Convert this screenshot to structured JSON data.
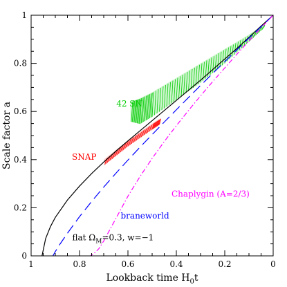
{
  "chart_data": {
    "type": "line",
    "xlabel": "Lookback time H",
    "xlabel_sub": "0",
    "xlabel_suffix": "t",
    "ylabel": "Scale factor a",
    "xlim": [
      1,
      0
    ],
    "ylim": [
      0,
      1
    ],
    "x_ticks": [
      1,
      0.8,
      0.6,
      0.4,
      0.2,
      0
    ],
    "x_tick_labels": [
      "1",
      "0.8",
      "0.6",
      "0.4",
      "0.2",
      "0"
    ],
    "y_ticks": [
      0,
      0.2,
      0.4,
      0.6,
      0.8,
      1
    ],
    "y_tick_labels": [
      "0",
      "0.2",
      "0.4",
      "0.6",
      "0.8",
      "1"
    ],
    "colors": {
      "flat": "#000000",
      "braneworld": "#0000ff",
      "chaplygin": "#ff00ff",
      "sn42": "#00cc00",
      "snap": "#ff0000"
    },
    "series": [
      {
        "key": "flat",
        "style": "solid",
        "x": [
          0,
          0.05,
          0.1,
          0.15,
          0.2,
          0.25,
          0.3,
          0.35,
          0.4,
          0.45,
          0.5,
          0.55,
          0.6,
          0.65,
          0.7,
          0.75,
          0.8,
          0.85,
          0.9,
          0.92,
          0.94,
          0.955
        ],
        "y": [
          1,
          0.955,
          0.908,
          0.862,
          0.818,
          0.774,
          0.73,
          0.688,
          0.646,
          0.604,
          0.562,
          0.52,
          0.478,
          0.435,
          0.39,
          0.342,
          0.29,
          0.232,
          0.16,
          0.122,
          0.072,
          0
        ]
      },
      {
        "key": "braneworld",
        "style": "dashed",
        "x": [
          0,
          0.05,
          0.1,
          0.15,
          0.2,
          0.25,
          0.3,
          0.35,
          0.4,
          0.45,
          0.5,
          0.55,
          0.6,
          0.65,
          0.7,
          0.75,
          0.8,
          0.85,
          0.88,
          0.9,
          0.91
        ],
        "y": [
          1,
          0.952,
          0.905,
          0.856,
          0.807,
          0.758,
          0.708,
          0.658,
          0.607,
          0.556,
          0.504,
          0.452,
          0.398,
          0.343,
          0.286,
          0.226,
          0.163,
          0.094,
          0.05,
          0.018,
          0
        ]
      },
      {
        "key": "chaplygin",
        "style": "dashdot",
        "x": [
          0,
          0.05,
          0.1,
          0.15,
          0.2,
          0.25,
          0.3,
          0.35,
          0.4,
          0.45,
          0.5,
          0.55,
          0.6,
          0.65,
          0.7,
          0.72,
          0.74,
          0.755
        ],
        "y": [
          1,
          0.947,
          0.893,
          0.838,
          0.781,
          0.724,
          0.665,
          0.604,
          0.541,
          0.475,
          0.405,
          0.33,
          0.248,
          0.155,
          0.062,
          0.03,
          0.01,
          0
        ]
      }
    ],
    "bands": [
      {
        "key": "sn42",
        "label": "42 SN",
        "x": [
          0.04,
          0.1,
          0.2,
          0.3,
          0.4,
          0.5,
          0.55,
          0.59
        ],
        "y_low": [
          0.945,
          0.89,
          0.8,
          0.72,
          0.648,
          0.578,
          0.548,
          0.558
        ],
        "y_high": [
          0.96,
          0.92,
          0.86,
          0.8,
          0.74,
          0.68,
          0.655,
          0.64
        ]
      },
      {
        "key": "snap",
        "label": "SNAP",
        "x": [
          0.47,
          0.5,
          0.55,
          0.6,
          0.65,
          0.7
        ],
        "y_low": [
          0.545,
          0.525,
          0.49,
          0.455,
          0.415,
          0.375
        ],
        "y_high": [
          0.57,
          0.55,
          0.515,
          0.48,
          0.44,
          0.4
        ]
      }
    ],
    "annotations": {
      "sn42": {
        "text": "42 SN",
        "x": 0.54,
        "y": 0.62
      },
      "snap": {
        "text": "SNAP",
        "x": 0.73,
        "y": 0.4
      },
      "chaplygin": {
        "text": "Chaplygin (A=2/3)",
        "x": 0.42,
        "y": 0.245
      },
      "braneworld": {
        "text": "braneworld",
        "x": 0.63,
        "y": 0.155
      },
      "flat": {
        "text_a": "flat Ω",
        "sub": "M",
        "text_b": "=0.3, w=−1",
        "x": 0.83,
        "y": 0.065
      }
    }
  }
}
